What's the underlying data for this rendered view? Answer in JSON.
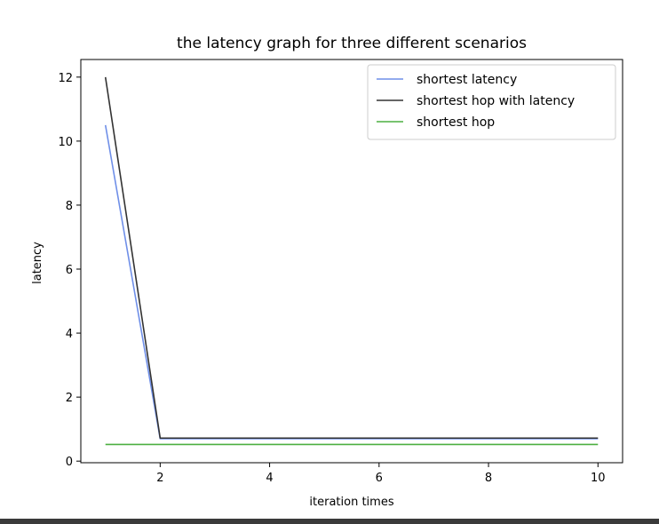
{
  "chart_data": {
    "type": "line",
    "title": "the latency graph for three different scenarios",
    "xlabel": "iteration times",
    "ylabel": "latency",
    "x": [
      1,
      2,
      3,
      4,
      5,
      6,
      7,
      8,
      9,
      10
    ],
    "xlim": [
      0.55,
      10.45
    ],
    "ylim": [
      -0.05,
      12.55
    ],
    "xticks": [
      2,
      4,
      6,
      8,
      10
    ],
    "yticks": [
      0,
      2,
      4,
      6,
      8,
      10,
      12
    ],
    "grid": false,
    "legend_position": "top-right",
    "series": [
      {
        "name": "shortest latency",
        "color": "#6f8fe8",
        "values": [
          10.5,
          0.7,
          0.7,
          0.7,
          0.7,
          0.7,
          0.7,
          0.7,
          0.7,
          0.7
        ]
      },
      {
        "name": "shortest hop with latency",
        "color": "#333333",
        "values": [
          12.0,
          0.72,
          0.72,
          0.72,
          0.72,
          0.72,
          0.72,
          0.72,
          0.72,
          0.72
        ]
      },
      {
        "name": "shortest hop",
        "color": "#4caf40",
        "values": [
          0.52,
          0.52,
          0.52,
          0.52,
          0.52,
          0.52,
          0.52,
          0.52,
          0.52,
          0.52
        ]
      }
    ]
  }
}
